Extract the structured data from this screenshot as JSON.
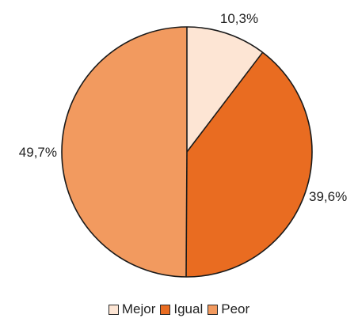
{
  "chart_data": {
    "type": "pie",
    "title": "",
    "slices": [
      {
        "name": "Mejor",
        "value": 10.3,
        "label": "10,3%",
        "color": "#fde5d4"
      },
      {
        "name": "Igual",
        "value": 39.6,
        "label": "39,6%",
        "color": "#e96c21"
      },
      {
        "name": "Peor",
        "value": 49.7,
        "label": "49,7%",
        "color": "#f29a5f"
      }
    ],
    "start_angle": "12 o'clock",
    "direction": "clockwise",
    "legend_position": "bottom",
    "edge_color": "#1a1a1a"
  }
}
